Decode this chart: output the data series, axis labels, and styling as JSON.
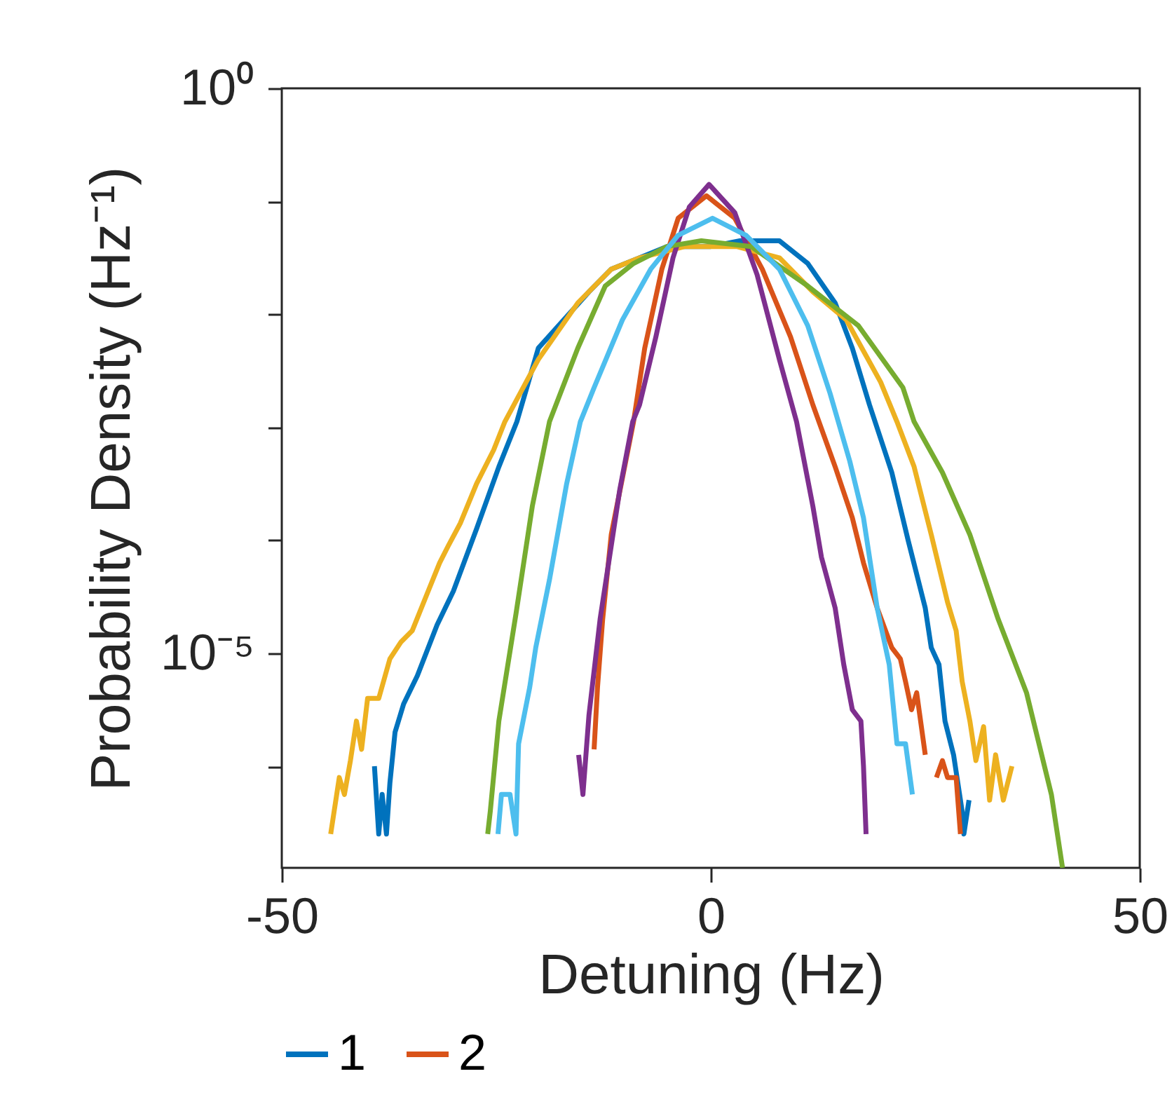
{
  "chart_data": {
    "type": "line",
    "xlabel": "Detuning (Hz)",
    "ylabel": "Probability Density (Hz⁻¹)",
    "log": "y",
    "grid": false,
    "legend": "bottom",
    "line_style": "solid",
    "marker": "none",
    "xlim": [
      -50,
      50
    ],
    "xticks": [
      -50,
      0,
      50
    ],
    "ylim": [
      1.26e-07,
      1
    ],
    "yticks": [
      {
        "value": 1,
        "label": "10⁰"
      },
      {
        "value": 0.1,
        "label": null
      },
      {
        "value": 0.01,
        "label": null
      },
      {
        "value": 0.001,
        "label": null
      },
      {
        "value": 0.0001,
        "label": null
      },
      {
        "value": 1e-05,
        "label": "10⁻⁵"
      },
      {
        "value": 1e-06,
        "label": null
      }
    ],
    "series": [
      {
        "name": "1",
        "color": "#0072bd",
        "x": [
          -39.2,
          -38.7,
          -38.3,
          -37.8,
          -37.4,
          -36.8,
          -35.8,
          -34.2,
          -31.9,
          -30.0,
          -27.3,
          -24.7,
          -22.6,
          -20.1,
          -14.2,
          -11.6,
          -8.3,
          -5.1,
          0,
          3.4,
          8.0,
          11.3,
          14.5,
          16.5,
          18.5,
          21.1,
          23.0,
          25.0,
          25.7,
          26.6,
          27.3,
          28.3,
          29.3,
          29.5,
          30.1
        ],
        "values": [
          1e-06,
          2.51e-07,
          5.62e-07,
          2.51e-07,
          7.08e-07,
          2e-06,
          3.55e-06,
          6.31e-06,
          1.78e-05,
          3.55e-05,
          0.000126,
          0.000447,
          0.00112,
          0.00501,
          0.0158,
          0.0251,
          0.0316,
          0.0398,
          0.0398,
          0.0447,
          0.0447,
          0.0282,
          0.0126,
          0.00501,
          0.00158,
          0.000398,
          0.0001,
          2.51e-05,
          1.12e-05,
          7.94e-06,
          2.51e-06,
          1.26e-06,
          3.98e-07,
          2.51e-07,
          5.01e-07
        ]
      },
      {
        "name": "2",
        "color": "#d95319",
        "x": [
          -13.6,
          -13.2,
          -12.6,
          -11.6,
          -10.3,
          -9.0,
          -7.7,
          -5.7,
          -3.8,
          -0.5,
          2.8,
          6.0,
          9.3,
          11.9,
          14.5,
          16.5,
          17.8,
          19.4,
          21.1,
          22.1,
          22.7,
          23.4,
          24.0,
          25.0,
          25.6,
          26.3,
          27.0,
          27.6,
          28.6,
          29.1
        ],
        "values": [
          1.41e-06,
          5.01e-06,
          2e-05,
          0.000112,
          0.000355,
          0.00112,
          0.00501,
          0.0251,
          0.0708,
          0.112,
          0.0708,
          0.0251,
          0.00631,
          0.00158,
          0.000447,
          0.000158,
          6.31e-05,
          2.51e-05,
          1.12e-05,
          8.91e-06,
          5.62e-06,
          3.16e-06,
          4.47e-06,
          1.26e-06,
          null,
          7.94e-07,
          1.12e-06,
          7.94e-07,
          7.94e-07,
          2.51e-07
        ]
      },
      {
        "color": "#edb120",
        "x": [
          -44.3,
          -43.3,
          -42.7,
          -42.0,
          -41.3,
          -40.7,
          -40.0,
          -38.7,
          -37.4,
          -36.1,
          -34.8,
          -33.2,
          -31.6,
          -30.6,
          -29.2,
          -27.3,
          -25.3,
          -24.0,
          -20.1,
          -15.5,
          -11.6,
          -8.3,
          -3,
          3,
          8.0,
          11.9,
          15.8,
          19.8,
          21.7,
          23.7,
          25.7,
          27.6,
          28.6,
          29.3,
          30.2,
          30.9,
          31.8,
          32.5,
          33.2,
          34.1,
          35.1
        ],
        "values": [
          2.51e-07,
          7.94e-07,
          5.62e-07,
          1.12e-06,
          2.51e-06,
          1.41e-06,
          3.98e-06,
          3.98e-06,
          8.91e-06,
          1.26e-05,
          1.58e-05,
          3.16e-05,
          6.31e-05,
          8.91e-05,
          0.000141,
          0.000316,
          0.000631,
          0.00112,
          0.00398,
          0.0126,
          0.0251,
          0.0316,
          0.0398,
          0.0398,
          0.0316,
          0.0158,
          0.00891,
          0.00251,
          0.00112,
          0.000447,
          0.000112,
          2.82e-05,
          1.58e-05,
          5.62e-06,
          2.51e-06,
          1.12e-06,
          2.24e-06,
          5.01e-07,
          1.26e-06,
          5.01e-07,
          1e-06
        ]
      },
      {
        "color": "#7e2f8e",
        "x": [
          -15.4,
          -14.9,
          -14.2,
          -12.9,
          -10.6,
          -9.1,
          -8.3,
          -6.4,
          -4.4,
          -2.5,
          -0.2,
          2.8,
          5.4,
          8.0,
          10.0,
          11.9,
          12.9,
          14.5,
          15.5,
          16.5,
          17.5,
          17.8,
          18.1
        ],
        "values": [
          1.26e-06,
          5.62e-07,
          2.82e-06,
          2e-05,
          0.000282,
          0.00112,
          0.00158,
          0.00631,
          0.0316,
          0.0891,
          0.141,
          0.0794,
          0.0224,
          0.00398,
          0.00112,
          0.0002,
          7.08e-05,
          2.51e-05,
          7.94e-06,
          3.16e-06,
          2.51e-06,
          1e-06,
          2.51e-07
        ]
      },
      {
        "color": "#77ac30",
        "x": [
          -26.0,
          -25.7,
          -24.7,
          -22.7,
          -20.8,
          -18.8,
          -15.5,
          -12.3,
          -9.0,
          -5.1,
          -1.1,
          4.7,
          11.3,
          17.2,
          22.4,
          23.7,
          27.0,
          30.2,
          33.5,
          36.8,
          39.7,
          41.0
        ],
        "values": [
          2.51e-07,
          3.98e-07,
          2.51e-06,
          2.24e-05,
          0.0002,
          0.00112,
          0.00501,
          0.0178,
          0.0282,
          0.0398,
          0.0447,
          0.0398,
          0.0178,
          0.00794,
          0.00224,
          0.00112,
          0.000398,
          0.000112,
          2e-05,
          4.47e-06,
          5.62e-07,
          1.26e-07
        ]
      },
      {
        "color": "#4dbeee",
        "x": [
          -24.8,
          -24.4,
          -23.4,
          -22.7,
          -22.4,
          -21.1,
          -20.4,
          -18.8,
          -16.8,
          -15.2,
          -13.6,
          -10.3,
          -7.0,
          -3.8,
          0.2,
          4.1,
          8.0,
          11.3,
          13.9,
          16.2,
          17.8,
          19.4,
          20.8,
          21.7,
          22.7,
          23.5
        ],
        "values": [
          2.51e-07,
          5.62e-07,
          5.62e-07,
          2.51e-07,
          1.58e-06,
          5.01e-06,
          1.12e-05,
          4.47e-05,
          0.000316,
          0.00112,
          0.00224,
          0.00891,
          0.0251,
          0.0501,
          0.0708,
          0.0501,
          0.0251,
          0.00794,
          0.002,
          0.000501,
          0.000158,
          2.51e-05,
          7.94e-06,
          1.58e-06,
          1.58e-06,
          5.62e-07
        ]
      }
    ]
  }
}
